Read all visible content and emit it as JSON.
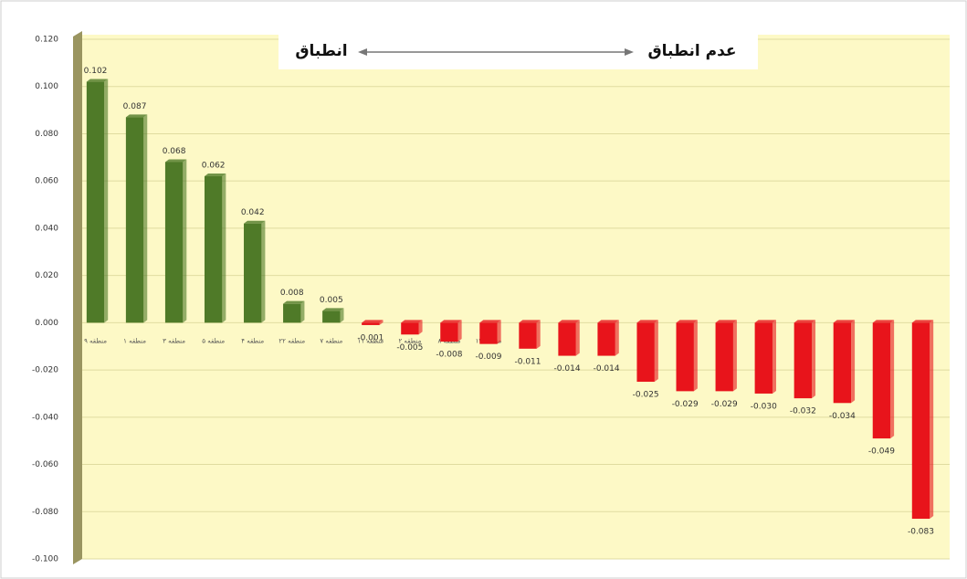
{
  "chart_data": {
    "type": "bar",
    "annotations": [
      "انطباق",
      "عدم انطباق"
    ],
    "categories": [
      "منطقه ۹",
      "منطقه ۱",
      "منطقه ۳",
      "منطقه ۵",
      "منطقه ۴",
      "منطقه ۲۲",
      "منطقه ۷",
      "منطقه ۱۱",
      "منطقه ۲",
      "منطقه ۸",
      "منطقه ۱۳",
      null,
      null,
      null,
      null,
      null,
      null,
      null,
      null,
      null,
      null,
      null
    ],
    "values": [
      0.102,
      0.087,
      0.068,
      0.062,
      0.042,
      0.008,
      0.005,
      -0.001,
      -0.005,
      -0.008,
      -0.009,
      -0.011,
      -0.014,
      -0.014,
      -0.025,
      -0.029,
      -0.029,
      -0.03,
      -0.032,
      -0.034,
      -0.049,
      -0.083
    ],
    "value_labels": [
      "0.102",
      "0.087",
      "0.068",
      "0.062",
      "0.042",
      "0.008",
      "0.005",
      "-0.001",
      "-0.005",
      "-0.008",
      "-0.009",
      "-0.011",
      "-0.014",
      "-0.014",
      "-0.025",
      "-0.029",
      "-0.029",
      "-0.030",
      "-0.032",
      "-0.034",
      "-0.049",
      "-0.083"
    ],
    "positive_color": "#4f7a28",
    "negative_color": "#e8141b",
    "ylim": [
      -0.1,
      0.12
    ],
    "yticks": [
      {
        "value": -0.1,
        "label": "-0.100"
      },
      {
        "value": -0.08,
        "label": "-0.080"
      },
      {
        "value": -0.06,
        "label": "-0.060"
      },
      {
        "value": -0.04,
        "label": "-0.040"
      },
      {
        "value": -0.02,
        "label": "-0.020"
      },
      {
        "value": 0,
        "label": "0.000"
      },
      {
        "value": 0.02,
        "label": "0.020"
      },
      {
        "value": 0.04,
        "label": "0.040"
      },
      {
        "value": 0.06,
        "label": "0.060"
      },
      {
        "value": 0.08,
        "label": "0.080"
      },
      {
        "value": 0.1,
        "label": "0.100"
      },
      {
        "value": 0.12,
        "label": "0.120"
      }
    ],
    "grid": true
  }
}
